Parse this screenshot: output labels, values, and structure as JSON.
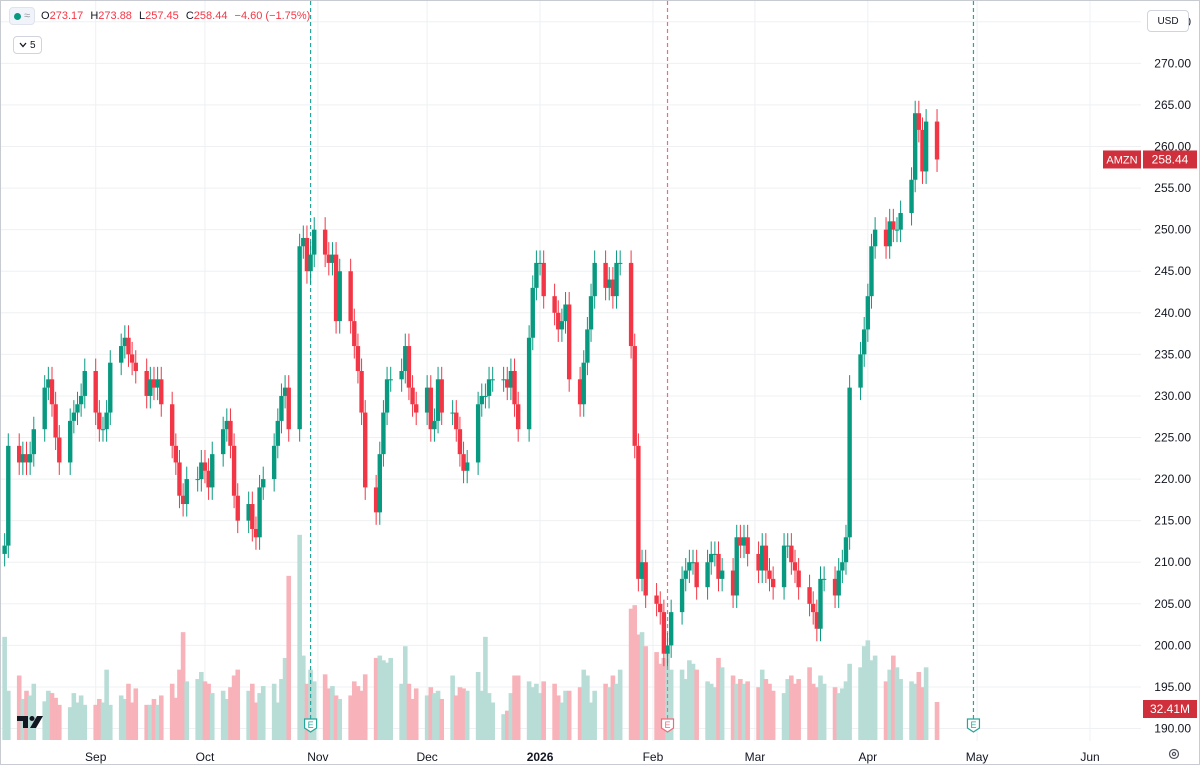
{
  "header": {
    "open_label": "O",
    "open": "273.17",
    "high_label": "H",
    "high": "273.88",
    "low_label": "L",
    "low": "257.45",
    "close_label": "C",
    "close": "258.44",
    "change": "−4.60 (−1.75%)",
    "collapse_count": "5",
    "currency": "USD"
  },
  "icons": {
    "status_dot": "status-dot-icon",
    "wave": "wave-icon",
    "chevron": "chevron-down-icon",
    "logo": "tradingview-logo-icon",
    "settings": "settings-gear-icon"
  },
  "colors": {
    "up": "#089981",
    "down": "#f23645",
    "vol_up": "#b8ddd7",
    "vol_down": "#f7b3b9",
    "earnings_line": "#26a69a",
    "dividend_line": "#ef6c7b",
    "grid": "#eef0f3",
    "label_bg": "#d0303b"
  },
  "chart_data": {
    "type": "candlestick",
    "symbol": "AMZN",
    "last_price": "258.44",
    "last_volume": "32.41M",
    "ylim": [
      188.5,
      277.5
    ],
    "volume_max_m": 145,
    "y_ticks": [
      "190.00",
      "195.00",
      "200.00",
      "205.00",
      "210.00",
      "215.00",
      "220.00",
      "225.00",
      "230.00",
      "235.00",
      "240.00",
      "245.00",
      "250.00",
      "255.00",
      "260.00",
      "265.00",
      "270.00",
      "275.00"
    ],
    "x_ticks": [
      {
        "label": "Sep",
        "date": "2025-09-01"
      },
      {
        "label": "Oct",
        "date": "2025-10-01"
      },
      {
        "label": "Nov",
        "date": "2025-11-01"
      },
      {
        "label": "Dec",
        "date": "2025-12-01"
      },
      {
        "label": "2026",
        "date": "2026-01-01",
        "bold": true
      },
      {
        "label": "Feb",
        "date": "2026-02-01"
      },
      {
        "label": "Mar",
        "date": "2026-03-01"
      },
      {
        "label": "Apr",
        "date": "2026-04-01"
      },
      {
        "label": "May",
        "date": "2026-05-01"
      },
      {
        "label": "Jun",
        "date": "2026-06-01"
      }
    ],
    "events": [
      {
        "marker": "E",
        "date": "2025-10-30"
      },
      {
        "marker": "E",
        "date": "2026-02-05"
      },
      {
        "marker": "E",
        "date": "2026-04-30"
      }
    ],
    "x_range": [
      "2025-08-06",
      "2026-06-15"
    ],
    "first_date": "2025-08-07",
    "closes": [
      212,
      224,
      222,
      223,
      222,
      223,
      226,
      231,
      232,
      229,
      225,
      222,
      227,
      228,
      229,
      230,
      233,
      228,
      226,
      226,
      228,
      234,
      236,
      237,
      235,
      234,
      233,
      230,
      232,
      231,
      232,
      229,
      224,
      222,
      218,
      217,
      220,
      220,
      222,
      221,
      219,
      223,
      226,
      227,
      224,
      218,
      215,
      217,
      214,
      213,
      219,
      220,
      224,
      227,
      230,
      231,
      226,
      248,
      249,
      245,
      247,
      250,
      247,
      246,
      247,
      239,
      245,
      239,
      236,
      233,
      228,
      219,
      216,
      223,
      228,
      232,
      232,
      233,
      236,
      231,
      229,
      228,
      231,
      226,
      227,
      232,
      228,
      228,
      226,
      223,
      221,
      222,
      229,
      230,
      230,
      232,
      232,
      232,
      231,
      233,
      229,
      226,
      237,
      243,
      246,
      246,
      242,
      240,
      238,
      239,
      241,
      232,
      229,
      234,
      238,
      242,
      246,
      243,
      244,
      242,
      246,
      246,
      236,
      224,
      208,
      210,
      206,
      205,
      204,
      199,
      200,
      204,
      208,
      209,
      210,
      210,
      207,
      210,
      211,
      211,
      208,
      209,
      206,
      213,
      212,
      213,
      211,
      209,
      212,
      209,
      208,
      207,
      212,
      212,
      210,
      209,
      207,
      205,
      204,
      202,
      208,
      208,
      206,
      209,
      210,
      213,
      231,
      235,
      238,
      242,
      248,
      250,
      248,
      251,
      250,
      250,
      252,
      256,
      264,
      262,
      257,
      263,
      258.44
    ],
    "volume_m": [
      88,
      42,
      55,
      35,
      42,
      38,
      48,
      33,
      42,
      40,
      36,
      30,
      28,
      40,
      32,
      38,
      30,
      30,
      35,
      32,
      60,
      30,
      38,
      35,
      48,
      32,
      44,
      30,
      30,
      35,
      30,
      38,
      48,
      36,
      60,
      92,
      50,
      52,
      58,
      50,
      48,
      40,
      42,
      35,
      45,
      55,
      60,
      42,
      48,
      32,
      40,
      46,
      48,
      32,
      52,
      70,
      140,
      175,
      72,
      48,
      60,
      50,
      56,
      44,
      46,
      38,
      35,
      38,
      50,
      46,
      42,
      56,
      70,
      72,
      68,
      66,
      70,
      48,
      80,
      48,
      35,
      44,
      38,
      45,
      40,
      42,
      35,
      55,
      38,
      45,
      44,
      42,
      58,
      42,
      88,
      40,
      32,
      22,
      25,
      40,
      55,
      55,
      50,
      45,
      48,
      40,
      50,
      48,
      38,
      32,
      42,
      42,
      45,
      60,
      55,
      32,
      42,
      48,
      45,
      55,
      48,
      60,
      112,
      115,
      90,
      92,
      80,
      75,
      65,
      70,
      78,
      60,
      60,
      52,
      68,
      65,
      60,
      50,
      48,
      45,
      70,
      62,
      55,
      48,
      52,
      48,
      50,
      45,
      60,
      52,
      48,
      42,
      40,
      52,
      55,
      48,
      52,
      62,
      48,
      45,
      55,
      48,
      45,
      40,
      44,
      50,
      65,
      62,
      80,
      85,
      68,
      72,
      50,
      60,
      72,
      62,
      52,
      50,
      48,
      58,
      45,
      62,
      32.41
    ]
  }
}
